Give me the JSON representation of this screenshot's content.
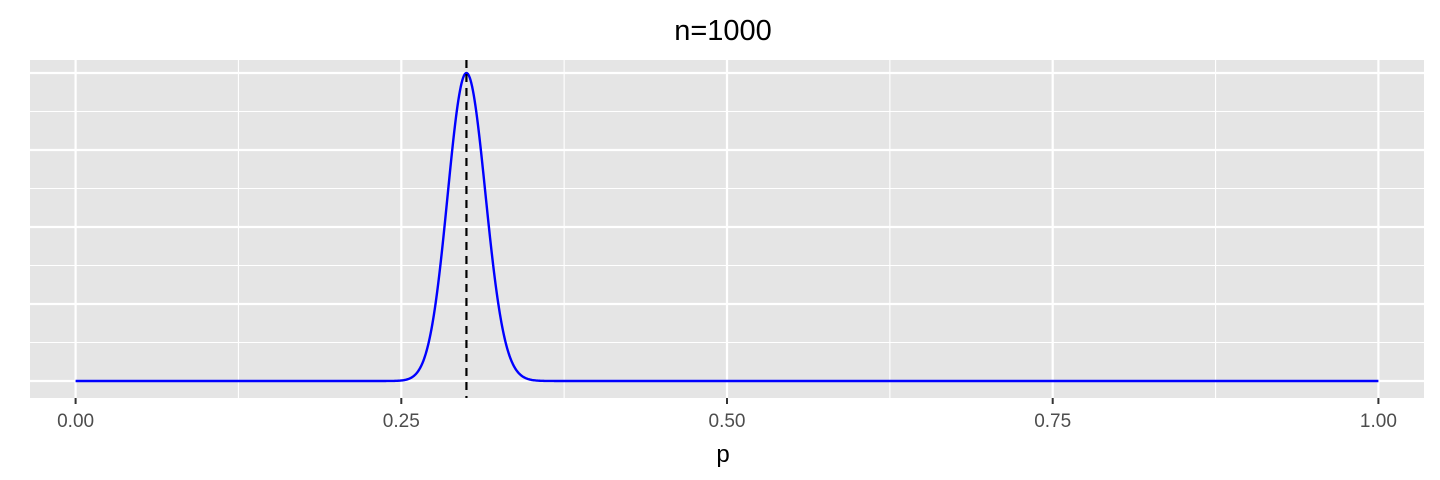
{
  "chart_data": {
    "type": "line",
    "title": "n=1000",
    "xlabel": "p",
    "ylabel": "",
    "xlim": [
      -0.035,
      1.035
    ],
    "x_ticks": [
      {
        "value": 0.0,
        "label": "0.00"
      },
      {
        "value": 0.25,
        "label": "0.25"
      },
      {
        "value": 0.5,
        "label": "0.50"
      },
      {
        "value": 0.75,
        "label": "0.75"
      },
      {
        "value": 1.0,
        "label": "1.00"
      }
    ],
    "x_minor_ticks": [
      0.125,
      0.375,
      0.625,
      0.875
    ],
    "y_axis_labels_shown": false,
    "grid": true,
    "panel_background": "#e5e5e5",
    "grid_color": "#ffffff",
    "series": [
      {
        "color": "#0000ff",
        "distribution": "beta",
        "n": 1000,
        "successes": 300,
        "x_range": [
          0,
          1
        ],
        "peak_at": 0.3
      }
    ],
    "reference_lines": [
      {
        "x": 0.3,
        "style": "dashed",
        "color": "#000000"
      }
    ]
  }
}
